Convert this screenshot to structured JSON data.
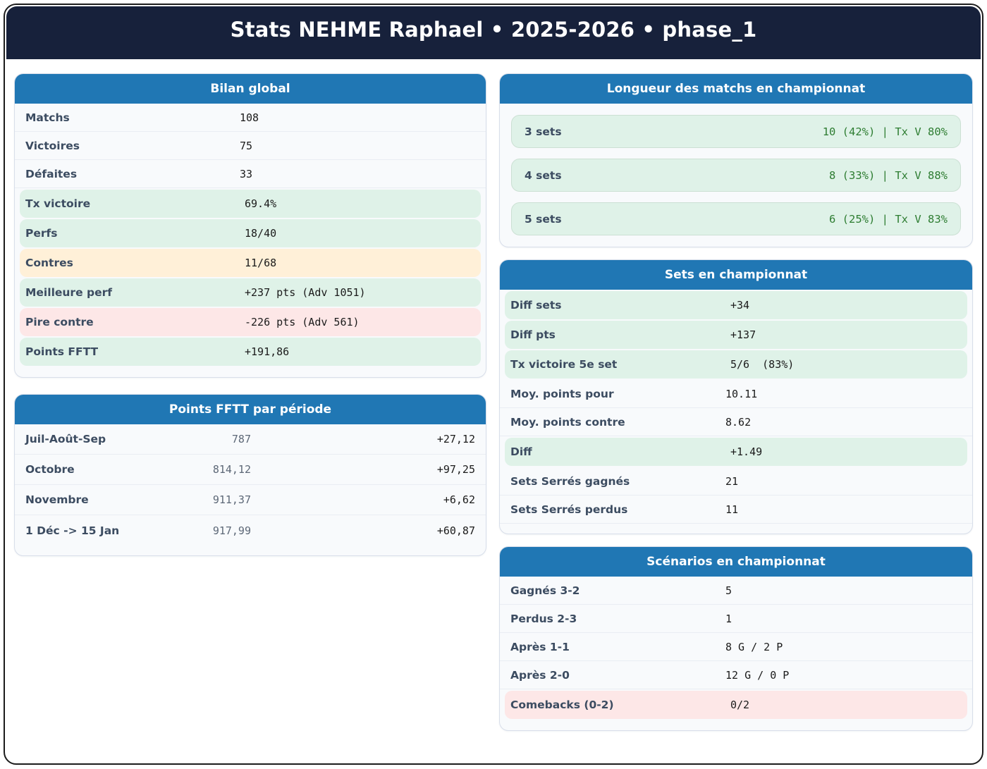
{
  "header": {
    "title": "Stats NEHME Raphael • 2025-2026 • phase_1"
  },
  "colors": {
    "navy": "#17213b",
    "card_header_blue": "#2077b4",
    "highlight_green": "#dff2e8",
    "highlight_yellow": "#fff0d8",
    "highlight_pink": "#fde7e7",
    "value_green_text": "#2e7d32"
  },
  "cards": {
    "bilan": {
      "title": "Bilan global",
      "rows": [
        {
          "label": "Matchs",
          "value": "108",
          "tone": "none"
        },
        {
          "label": "Victoires",
          "value": "75",
          "tone": "none"
        },
        {
          "label": "Défaites",
          "value": "33",
          "tone": "none"
        },
        {
          "label": "Tx victoire",
          "value": "69.4%",
          "tone": "green"
        },
        {
          "label": "Perfs",
          "value": "18/40",
          "tone": "green"
        },
        {
          "label": "Contres",
          "value": "11/68",
          "tone": "yellow"
        },
        {
          "label": "Meilleure perf",
          "value": "+237 pts (Adv 1051)",
          "tone": "green"
        },
        {
          "label": "Pire contre",
          "value": "-226 pts (Adv 561)",
          "tone": "pink"
        },
        {
          "label": "Points FFTT",
          "value": "+191,86",
          "tone": "green"
        }
      ]
    },
    "periode": {
      "title": "Points FFTT par période",
      "rows": [
        {
          "label": "Juil-Août-Sep",
          "points": "787",
          "delta": "+27,12"
        },
        {
          "label": "Octobre",
          "points": "814,12",
          "delta": "+97,25"
        },
        {
          "label": "Novembre",
          "points": "911,37",
          "delta": "+6,62"
        },
        {
          "label": "1 Déc -> 15 Jan",
          "points": "917,99",
          "delta": "+60,87"
        }
      ]
    },
    "longueur": {
      "title": "Longueur des matchs en championnat",
      "rows": [
        {
          "label": "3 sets",
          "value": "10 (42%) | Tx V 80%"
        },
        {
          "label": "4 sets",
          "value": "8 (33%) | Tx V 88%"
        },
        {
          "label": "5 sets",
          "value": "6 (25%) | Tx V 83%"
        }
      ]
    },
    "sets": {
      "title": "Sets en championnat",
      "rows": [
        {
          "label": "Diff sets",
          "value": "+34",
          "tone": "green"
        },
        {
          "label": "Diff pts",
          "value": "+137",
          "tone": "green"
        },
        {
          "label": "Tx victoire 5e set",
          "value": "5/6  (83%)",
          "tone": "green"
        },
        {
          "label": "Moy. points pour",
          "value": "10.11",
          "tone": "none"
        },
        {
          "label": "Moy. points contre",
          "value": "8.62",
          "tone": "none"
        },
        {
          "label": "Diff",
          "value": "+1.49",
          "tone": "green"
        },
        {
          "label": "Sets Serrés gagnés",
          "value": "21",
          "tone": "none"
        },
        {
          "label": "Sets Serrés perdus",
          "value": "11",
          "tone": "none"
        }
      ]
    },
    "scenarios": {
      "title": "Scénarios en championnat",
      "rows": [
        {
          "label": "Gagnés 3-2",
          "value": "5",
          "tone": "none"
        },
        {
          "label": "Perdus 2-3",
          "value": "1",
          "tone": "none"
        },
        {
          "label": "Après 1-1",
          "value": "8 G / 2 P",
          "tone": "none"
        },
        {
          "label": "Après 2-0",
          "value": "12 G / 0 P",
          "tone": "none"
        },
        {
          "label": "Comebacks (0-2)",
          "value": "0/2",
          "tone": "pink"
        }
      ]
    }
  }
}
